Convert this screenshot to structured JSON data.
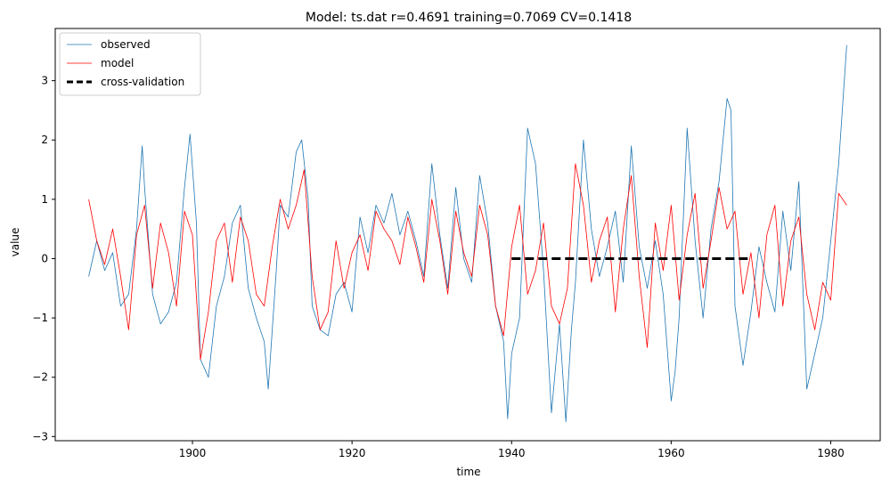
{
  "chart_data": {
    "type": "line",
    "title": "Model: ts.dat  r=0.4691  training=0.7069  CV=0.1418",
    "xlabel": "time",
    "ylabel": "value",
    "xlim": [
      1882.8,
      1986.2
    ],
    "ylim": [
      -3.07,
      3.88
    ],
    "xticks": [
      1900,
      1920,
      1940,
      1960,
      1980
    ],
    "yticks": [
      -3,
      -2,
      -1,
      0,
      1,
      2,
      3
    ],
    "grid": false,
    "legend_position": "top-left",
    "series": [
      {
        "name": "observed",
        "color": "#1f77b4",
        "style": "solid",
        "x": [
          1887.0,
          1888.0,
          1889.0,
          1890.0,
          1891.0,
          1892.0,
          1893.0,
          1893.7,
          1894.0,
          1895.0,
          1896.0,
          1897.0,
          1898.0,
          1899.0,
          1899.7,
          1900.5,
          1901.0,
          1902.0,
          1903.0,
          1904.0,
          1905.0,
          1906.0,
          1907.0,
          1908.0,
          1909.0,
          1909.5,
          1910.5,
          1911.0,
          1912.0,
          1913.0,
          1913.7,
          1914.5,
          1915.0,
          1916.0,
          1917.0,
          1918.0,
          1919.0,
          1920.0,
          1921.0,
          1922.0,
          1923.0,
          1924.0,
          1925.0,
          1926.0,
          1927.0,
          1928.0,
          1929.0,
          1930.0,
          1931.0,
          1932.0,
          1933.0,
          1934.0,
          1935.0,
          1936.0,
          1937.0,
          1938.0,
          1939.0,
          1939.5,
          1940.0,
          1941.0,
          1942.0,
          1943.0,
          1944.0,
          1945.0,
          1946.0,
          1946.8,
          1947.5,
          1948.0,
          1949.0,
          1950.0,
          1951.0,
          1952.0,
          1953.0,
          1954.0,
          1955.0,
          1956.0,
          1957.0,
          1958.0,
          1959.0,
          1960.0,
          1960.5,
          1961.0,
          1962.0,
          1963.0,
          1964.0,
          1965.0,
          1966.0,
          1967.0,
          1967.5,
          1968.0,
          1969.0,
          1970.0,
          1971.0,
          1972.0,
          1973.0,
          1974.0,
          1975.0,
          1976.0,
          1977.0,
          1978.0,
          1979.0,
          1980.0,
          1981.0,
          1982.0
        ],
        "y": [
          -0.3,
          0.3,
          -0.2,
          0.1,
          -0.8,
          -0.6,
          0.5,
          1.9,
          1.2,
          -0.6,
          -1.1,
          -0.9,
          -0.4,
          1.2,
          2.1,
          0.6,
          -1.7,
          -2.0,
          -0.8,
          -0.3,
          0.6,
          0.9,
          -0.5,
          -1.0,
          -1.4,
          -2.2,
          -0.2,
          0.9,
          0.7,
          1.8,
          2.0,
          1.0,
          -0.8,
          -1.2,
          -1.3,
          -0.6,
          -0.4,
          -0.9,
          0.7,
          0.1,
          0.9,
          0.6,
          1.1,
          0.4,
          0.8,
          0.3,
          -0.3,
          1.6,
          0.4,
          -0.5,
          1.2,
          0.0,
          -0.4,
          1.4,
          0.6,
          -0.8,
          -1.4,
          -2.7,
          -1.6,
          -1.0,
          2.2,
          1.6,
          -0.2,
          -2.6,
          -1.1,
          -2.75,
          -1.2,
          -0.4,
          2.0,
          0.5,
          -0.3,
          0.2,
          0.8,
          -0.4,
          1.9,
          0.2,
          -0.5,
          0.3,
          -0.6,
          -2.4,
          -1.9,
          -1.0,
          2.2,
          0.3,
          -1.0,
          0.5,
          1.3,
          2.7,
          2.5,
          -0.8,
          -1.8,
          -0.9,
          0.2,
          -0.4,
          -0.9,
          0.8,
          -0.2,
          1.3,
          -2.2,
          -1.6,
          -1.0,
          0.3,
          1.6,
          3.6
        ]
      },
      {
        "name": "model",
        "color": "#ff0000",
        "style": "solid",
        "x": [
          1887.0,
          1888.0,
          1889.0,
          1890.0,
          1891.0,
          1892.0,
          1893.0,
          1894.0,
          1895.0,
          1896.0,
          1897.0,
          1898.0,
          1899.0,
          1900.0,
          1901.0,
          1902.0,
          1903.0,
          1904.0,
          1905.0,
          1906.0,
          1907.0,
          1908.0,
          1909.0,
          1910.0,
          1911.0,
          1912.0,
          1913.0,
          1914.0,
          1915.0,
          1916.0,
          1917.0,
          1918.0,
          1919.0,
          1920.0,
          1921.0,
          1922.0,
          1923.0,
          1924.0,
          1925.0,
          1926.0,
          1927.0,
          1928.0,
          1929.0,
          1930.0,
          1931.0,
          1932.0,
          1933.0,
          1934.0,
          1935.0,
          1936.0,
          1937.0,
          1938.0,
          1939.0,
          1940.0,
          1941.0,
          1942.0,
          1943.0,
          1944.0,
          1945.0,
          1946.0,
          1947.0,
          1948.0,
          1949.0,
          1950.0,
          1951.0,
          1952.0,
          1953.0,
          1954.0,
          1955.0,
          1956.0,
          1957.0,
          1958.0,
          1959.0,
          1960.0,
          1961.0,
          1962.0,
          1963.0,
          1964.0,
          1965.0,
          1966.0,
          1967.0,
          1968.0,
          1969.0,
          1970.0,
          1971.0,
          1972.0,
          1973.0,
          1974.0,
          1975.0,
          1976.0,
          1977.0,
          1978.0,
          1979.0,
          1980.0,
          1981.0,
          1982.0
        ],
        "y": [
          1.0,
          0.3,
          -0.1,
          0.5,
          -0.3,
          -1.2,
          0.4,
          0.9,
          -0.5,
          0.6,
          0.1,
          -0.8,
          0.8,
          0.4,
          -1.7,
          -0.9,
          0.3,
          0.6,
          -0.4,
          0.7,
          0.3,
          -0.6,
          -0.8,
          0.2,
          1.0,
          0.5,
          0.9,
          1.5,
          -0.3,
          -1.2,
          -0.9,
          0.3,
          -0.5,
          0.1,
          0.4,
          -0.2,
          0.8,
          0.5,
          0.3,
          -0.1,
          0.7,
          0.2,
          -0.4,
          1.0,
          0.3,
          -0.6,
          0.8,
          0.1,
          -0.3,
          0.9,
          0.4,
          -0.8,
          -1.3,
          0.2,
          0.9,
          -0.6,
          -0.2,
          0.6,
          -0.8,
          -1.1,
          -0.5,
          1.6,
          0.9,
          -0.4,
          0.3,
          0.7,
          -0.9,
          0.5,
          1.4,
          -0.3,
          -1.5,
          0.6,
          -0.2,
          0.9,
          -0.7,
          0.4,
          1.1,
          -0.5,
          0.3,
          1.2,
          0.5,
          0.8,
          -0.6,
          0.1,
          -1.0,
          0.4,
          0.9,
          -0.8,
          0.3,
          0.7,
          -0.6,
          -1.2,
          -0.4,
          -0.7,
          1.1,
          0.9
        ]
      },
      {
        "name": "cross-validation",
        "color": "#000000",
        "style": "dashed",
        "x": [
          1940.0,
          1970.0
        ],
        "y": [
          0.0,
          0.0
        ]
      }
    ]
  }
}
